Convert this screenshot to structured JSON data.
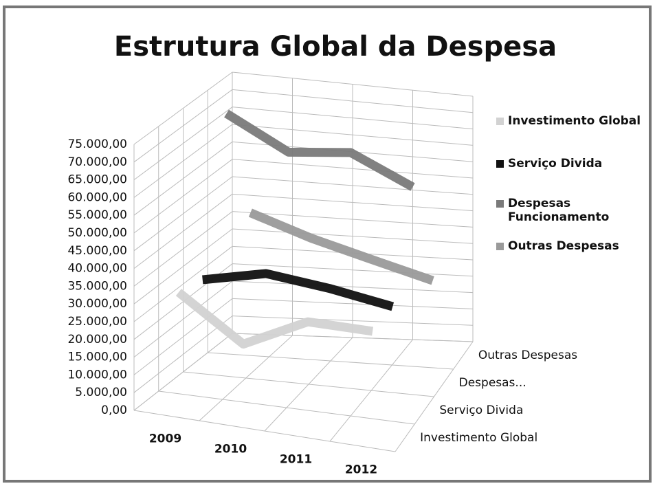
{
  "chart_data": {
    "type": "line3d",
    "title": "Estrutura Global da Despesa",
    "categories": [
      "2009",
      "2010",
      "2011",
      "2012"
    ],
    "depth_categories": [
      "Investimento Global",
      "Serviço Divida",
      "Despesas...",
      "Outras Despesas"
    ],
    "series": [
      {
        "name": "Investimento Global",
        "color": "#d2d2d2",
        "values": [
          32000,
          20000,
          29000,
          29000
        ]
      },
      {
        "name": "Serviço Divida",
        "color": "#111111",
        "values": [
          30000,
          34000,
          32000,
          29000
        ]
      },
      {
        "name": "Despesas Funcionamento",
        "color": "#7a7a7a",
        "values": [
          72000,
          63000,
          65000,
          57000
        ]
      },
      {
        "name": "Outras Despesas",
        "color": "#9a9a9a",
        "values": [
          38000,
          32000,
          27000,
          22000
        ]
      }
    ],
    "ylim": [
      0,
      75000
    ],
    "yticks": [
      {
        "value": 0,
        "label": "0,00"
      },
      {
        "value": 5000,
        "label": "5.000,00"
      },
      {
        "value": 10000,
        "label": "10.000,00"
      },
      {
        "value": 15000,
        "label": "15.000,00"
      },
      {
        "value": 20000,
        "label": "20.000,00"
      },
      {
        "value": 25000,
        "label": "25.000,00"
      },
      {
        "value": 30000,
        "label": "30.000,00"
      },
      {
        "value": 35000,
        "label": "35.000,00"
      },
      {
        "value": 40000,
        "label": "40.000,00"
      },
      {
        "value": 45000,
        "label": "45.000,00"
      },
      {
        "value": 50000,
        "label": "50.000,00"
      },
      {
        "value": 55000,
        "label": "55.000,00"
      },
      {
        "value": 60000,
        "label": "60.000,00"
      },
      {
        "value": 65000,
        "label": "65.000,00"
      },
      {
        "value": 70000,
        "label": "70.000,00"
      },
      {
        "value": 75000,
        "label": "75.000,00"
      }
    ],
    "grid": true,
    "legend": "right"
  }
}
